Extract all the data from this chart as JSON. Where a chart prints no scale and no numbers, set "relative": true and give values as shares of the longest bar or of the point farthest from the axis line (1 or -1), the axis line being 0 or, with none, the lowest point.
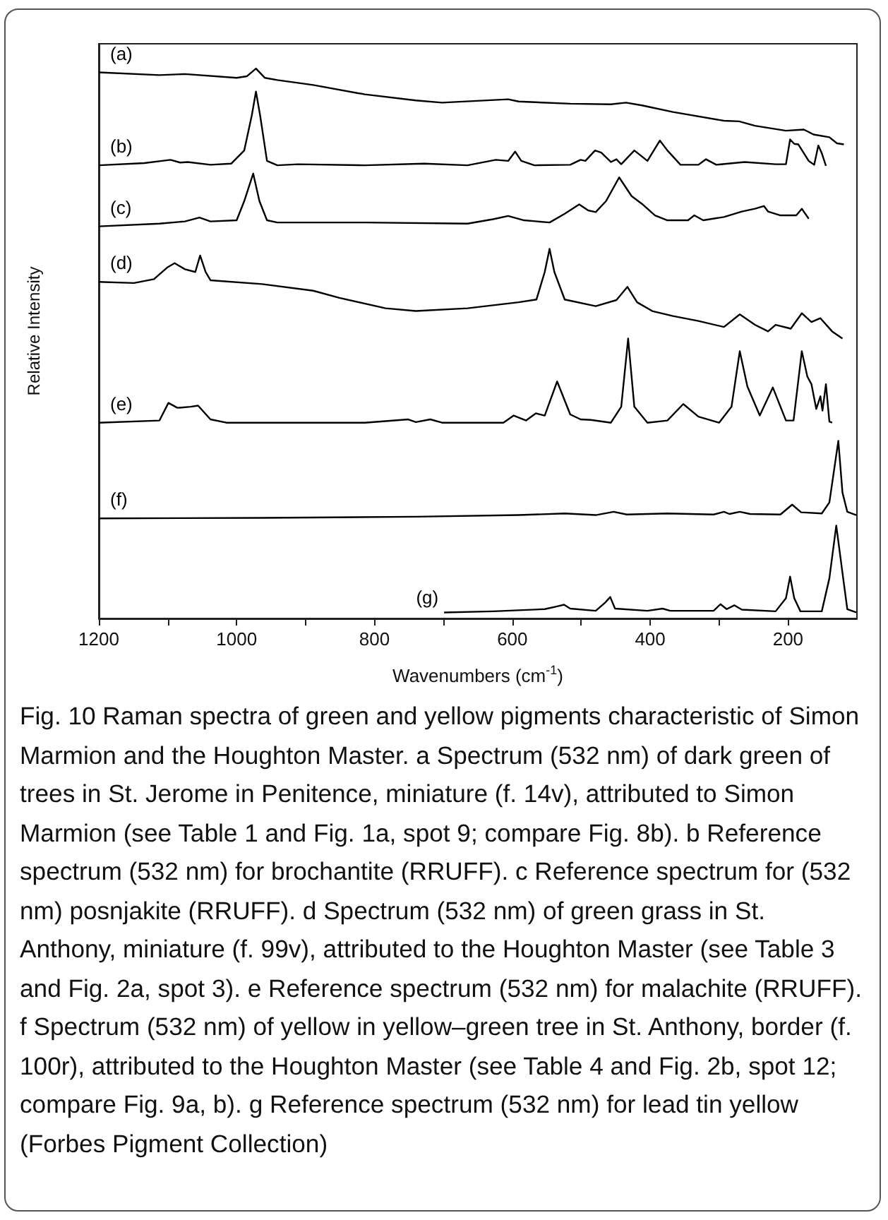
{
  "chart_data": {
    "type": "line",
    "relative": true,
    "xlabel": "Wavenumbers (cm$^{-1}$)",
    "ylabel": "Relative Intensity",
    "xlim": [
      1200,
      100
    ],
    "xticks": [
      1200,
      {
        "value": 1100,
        "label": null
      },
      1000,
      {
        "value": 900,
        "label": null
      },
      800,
      {
        "value": 700,
        "label": null
      },
      600,
      {
        "value": 500,
        "label": null
      },
      400,
      {
        "value": 300,
        "label": null
      },
      200
    ],
    "grid": false,
    "legend": false,
    "series": [
      {
        "name": "(a)",
        "color": "#000000",
        "x": [
          1200,
          1112,
          1075,
          1000,
          985,
          972,
          959,
          941,
          889,
          814,
          740,
          702,
          606,
          591,
          516,
          457,
          435,
          412,
          367,
          293,
          271,
          248,
          203,
          177,
          163,
          140,
          129,
          119
        ],
        "values": [
          0.993,
          0.988,
          0.99,
          0.983,
          0.986,
          1.0,
          0.983,
          0.979,
          0.97,
          0.953,
          0.942,
          0.938,
          0.944,
          0.94,
          0.936,
          0.935,
          0.938,
          0.933,
          0.921,
          0.905,
          0.904,
          0.896,
          0.887,
          0.889,
          0.88,
          0.875,
          0.864,
          0.862
        ]
      },
      {
        "name": "(b)",
        "color": "#000000",
        "x": [
          1200,
          1134,
          1096,
          1082,
          1071,
          1038,
          1008,
          989,
          978,
          972,
          966,
          956,
          941,
          911,
          814,
          728,
          665,
          624,
          606,
          596,
          587,
          568,
          516,
          501,
          494,
          480,
          471,
          457,
          449,
          442,
          423,
          412,
          404,
          386,
          375,
          356,
          330,
          319,
          304,
          263,
          218,
          203,
          197,
          191,
          185,
          170,
          162,
          156,
          151,
          145
        ],
        "values": [
          0.824,
          0.828,
          0.834,
          0.829,
          0.83,
          0.825,
          0.827,
          0.851,
          0.915,
          0.958,
          0.915,
          0.832,
          0.824,
          0.826,
          0.824,
          0.827,
          0.824,
          0.834,
          0.832,
          0.849,
          0.832,
          0.824,
          0.825,
          0.834,
          0.832,
          0.851,
          0.847,
          0.83,
          0.835,
          0.826,
          0.851,
          0.84,
          0.832,
          0.869,
          0.851,
          0.825,
          0.825,
          0.835,
          0.825,
          0.83,
          0.826,
          0.826,
          0.871,
          0.863,
          0.862,
          0.832,
          0.825,
          0.86,
          0.846,
          0.823
        ]
      },
      {
        "name": "(c)",
        "color": "#000000",
        "x": [
          1200,
          1112,
          1075,
          1054,
          1038,
          1000,
          989,
          976,
          967,
          956,
          941,
          814,
          665,
          628,
          606,
          583,
          546,
          524,
          503,
          490,
          479,
          464,
          445,
          427,
          412,
          393,
          375,
          345,
          336,
          323,
          293,
          267,
          248,
          235,
          229,
          211,
          188,
          180,
          170
        ],
        "values": [
          0.713,
          0.718,
          0.722,
          0.729,
          0.722,
          0.724,
          0.759,
          0.809,
          0.759,
          0.724,
          0.72,
          0.72,
          0.718,
          0.726,
          0.732,
          0.724,
          0.72,
          0.736,
          0.753,
          0.742,
          0.739,
          0.759,
          0.802,
          0.768,
          0.754,
          0.733,
          0.724,
          0.724,
          0.733,
          0.724,
          0.73,
          0.74,
          0.745,
          0.75,
          0.74,
          0.733,
          0.733,
          0.745,
          0.727
        ]
      },
      {
        "name": "(d)",
        "color": "#000000",
        "x": [
          1200,
          1149,
          1120,
          1101,
          1090,
          1075,
          1060,
          1053,
          1045,
          1038,
          963,
          889,
          851,
          784,
          740,
          665,
          591,
          565,
          553,
          546,
          539,
          524,
          479,
          449,
          433,
          419,
          397,
          367,
          330,
          293,
          270,
          248,
          229,
          218,
          196,
          180,
          166,
          153,
          136,
          121
        ],
        "values": [
          0.612,
          0.61,
          0.617,
          0.638,
          0.646,
          0.635,
          0.63,
          0.66,
          0.63,
          0.615,
          0.608,
          0.596,
          0.583,
          0.564,
          0.559,
          0.564,
          0.575,
          0.58,
          0.63,
          0.672,
          0.63,
          0.58,
          0.568,
          0.579,
          0.603,
          0.575,
          0.559,
          0.55,
          0.541,
          0.53,
          0.553,
          0.534,
          0.522,
          0.534,
          0.527,
          0.555,
          0.539,
          0.546,
          0.522,
          0.509
        ]
      },
      {
        "name": "(e)",
        "color": "#000000",
        "x": [
          1200,
          1112,
          1099,
          1086,
          1067,
          1056,
          1038,
          1015,
          814,
          751,
          740,
          719,
          702,
          613,
          598,
          580,
          566,
          553,
          535,
          516,
          501,
          486,
          457,
          442,
          432,
          423,
          404,
          375,
          352,
          330,
          300,
          282,
          270,
          259,
          241,
          222,
          203,
          192,
          180,
          172,
          166,
          159,
          153,
          150,
          145,
          140,
          136
        ],
        "values": [
          0.356,
          0.36,
          0.392,
          0.383,
          0.385,
          0.387,
          0.362,
          0.356,
          0.356,
          0.362,
          0.357,
          0.362,
          0.356,
          0.356,
          0.369,
          0.36,
          0.373,
          0.369,
          0.431,
          0.371,
          0.362,
          0.361,
          0.356,
          0.385,
          0.509,
          0.385,
          0.356,
          0.36,
          0.39,
          0.367,
          0.356,
          0.385,
          0.486,
          0.422,
          0.369,
          0.42,
          0.36,
          0.36,
          0.486,
          0.44,
          0.426,
          0.381,
          0.404,
          0.378,
          0.426,
          0.358,
          0.356
        ]
      },
      {
        "name": "(f)",
        "color": "#000000",
        "x": [
          1200,
          963,
          740,
          591,
          524,
          479,
          453,
          434,
          375,
          308,
          293,
          285,
          270,
          255,
          211,
          194,
          181,
          151,
          140,
          127,
          121,
          114,
          101
        ],
        "values": [
          0.182,
          0.183,
          0.185,
          0.188,
          0.191,
          0.188,
          0.194,
          0.189,
          0.191,
          0.189,
          0.194,
          0.19,
          0.194,
          0.19,
          0.189,
          0.207,
          0.193,
          0.191,
          0.211,
          0.323,
          0.229,
          0.194,
          0.188
        ]
      },
      {
        "name": "(g)",
        "color": "#000000",
        "x": [
          699,
          628,
          553,
          535,
          525,
          516,
          479,
          466,
          458,
          451,
          404,
          382,
          371,
          308,
          298,
          289,
          278,
          267,
          218,
          203,
          197,
          191,
          182,
          151,
          140,
          130,
          121,
          114,
          101
        ],
        "values": [
          0.011,
          0.013,
          0.017,
          0.022,
          0.025,
          0.018,
          0.014,
          0.028,
          0.039,
          0.018,
          0.014,
          0.018,
          0.014,
          0.014,
          0.026,
          0.017,
          0.024,
          0.016,
          0.013,
          0.037,
          0.076,
          0.037,
          0.013,
          0.013,
          0.073,
          0.169,
          0.083,
          0.017,
          0.011
        ]
      }
    ],
    "annotations": [
      "Fig. 10 Raman spectra of green and yellow pigments characteristic of Simon Marmion and the Houghton Master. a Spectrum (532 nm) of dark green of trees in St. Jerome in Penitence, miniature (f. 14v), attributed to Simon Marmion (see Table 1 and Fig. 1a, spot 9; compare Fig. 8b). b Reference spectrum (532 nm) for brochantite (RRUFF). c Reference spectrum for (532 nm) posnjakite (RRUFF). d Spectrum (532 nm) of green grass in St. Anthony, miniature (f. 99v), attributed to the Houghton Master (see Table 3 and Fig. 2a, spot 3). e Reference spectrum (532 nm) for malachite (RRUFF). f Spectrum (532 nm) of yellow in yellow–green tree in St. Anthony, border (f. 100r), attributed to the Houghton Master (see Table 4 and Fig. 2b, spot 12; compare Fig. 9a, b). g Reference spectrum (532 nm) for lead tin yellow (Forbes Pigment Collection)"
    ]
  }
}
